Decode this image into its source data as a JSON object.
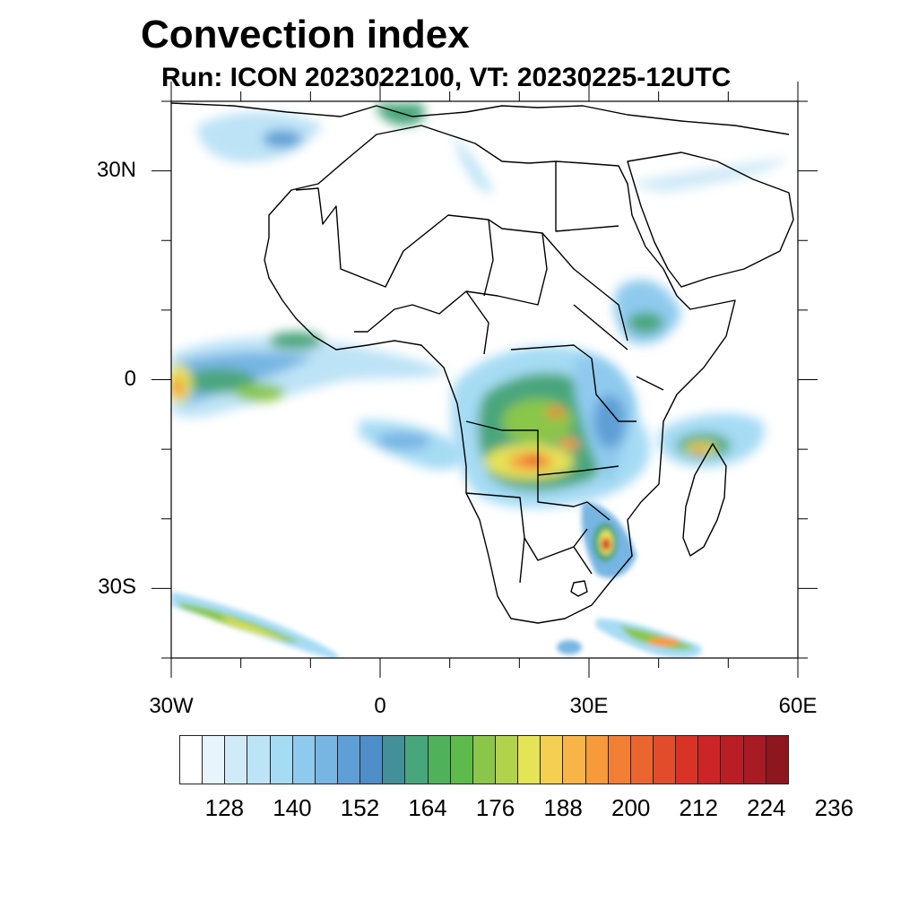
{
  "title": "Convection index",
  "subtitle": "Run: ICON 2023022100,  VT: 20230225-12UTC",
  "map": {
    "lon_range": [
      -30,
      60
    ],
    "lat_range": [
      -40,
      40
    ],
    "x_ticks": [
      {
        "label": "30W",
        "lon": -30
      },
      {
        "label": "0",
        "lon": 0
      },
      {
        "label": "30E",
        "lon": 30
      },
      {
        "label": "60E",
        "lon": 60
      }
    ],
    "y_ticks": [
      {
        "label": "30N",
        "lat": 30
      },
      {
        "label": "0",
        "lat": 0
      },
      {
        "label": "30S",
        "lat": -30
      }
    ],
    "features": [
      {
        "name": "atlantic-itcz-band",
        "lon": -22,
        "lat": 0,
        "peak": "orange"
      },
      {
        "name": "congo-basin-convection",
        "lon": 22,
        "lat": -12,
        "peak": "red"
      },
      {
        "name": "mozambique-channel-convection",
        "lon": 32,
        "lat": -25,
        "peak": "red"
      },
      {
        "name": "madagascar-north-convection",
        "lon": 48,
        "lat": -11,
        "peak": "orange"
      },
      {
        "name": "south-atlantic-front",
        "lon": -22,
        "lat": -36,
        "peak": "yellow"
      },
      {
        "name": "south-indian-front",
        "lon": 43,
        "lat": -38,
        "peak": "orange"
      }
    ]
  },
  "colorbar": {
    "colors": [
      "#ffffff",
      "#e8f4fb",
      "#d0eaf8",
      "#bde3f6",
      "#a6dbf4",
      "#8fcaee",
      "#77b5e3",
      "#5f9fd6",
      "#4e8ec9",
      "#43909a",
      "#48a67c",
      "#4fb15a",
      "#5cbb4a",
      "#8ac64a",
      "#b2d24c",
      "#e5e356",
      "#f5cf52",
      "#f8b447",
      "#f79a3c",
      "#f17f34",
      "#eb652e",
      "#e24c2a",
      "#d93227",
      "#cc2527",
      "#b91e26",
      "#a81a24",
      "#8e161f"
    ],
    "labels": [
      "128",
      "140",
      "152",
      "164",
      "176",
      "188",
      "200",
      "212",
      "224",
      "236"
    ]
  }
}
